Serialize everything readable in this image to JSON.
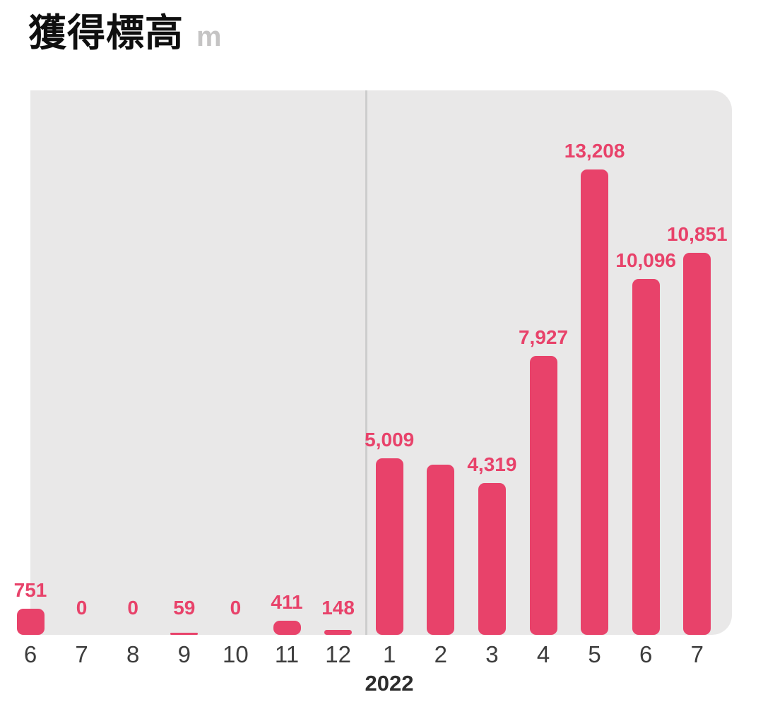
{
  "header": {
    "title": "獲得標高",
    "unit": "m"
  },
  "chart_data": {
    "type": "bar",
    "title": "獲得標高",
    "unit": "m",
    "categories": [
      "6",
      "7",
      "8",
      "9",
      "10",
      "11",
      "12",
      "1",
      "2",
      "3",
      "4",
      "5",
      "6",
      "7"
    ],
    "series": [
      {
        "name": "獲得標高",
        "values": [
          751,
          0,
          0,
          59,
          0,
          411,
          148,
          5009,
          4825,
          4319,
          7927,
          13208,
          10096,
          10851
        ]
      }
    ],
    "value_labels": [
      "751",
      "0",
      "0",
      "59",
      "0",
      "411",
      "148",
      "5,009",
      null,
      "4,319",
      "7,927",
      "13,208",
      "10,096",
      "10,851"
    ],
    "x_axis": {
      "year_label": "2022",
      "year_divider_after_category_index": 6,
      "first_bar_clipped_at_left_edge": true
    },
    "ylim": [
      0,
      13208
    ],
    "grid": false,
    "legend": false,
    "colors": {
      "bar": "#e8426a",
      "plot_background": "#e9e8e8",
      "divider_line": "#cdcdcd",
      "tick_text": "#3d3d3d",
      "year_text": "#2d2d2d",
      "title_text": "#0f0f0f",
      "unit_text": "#c5c4c4"
    }
  }
}
